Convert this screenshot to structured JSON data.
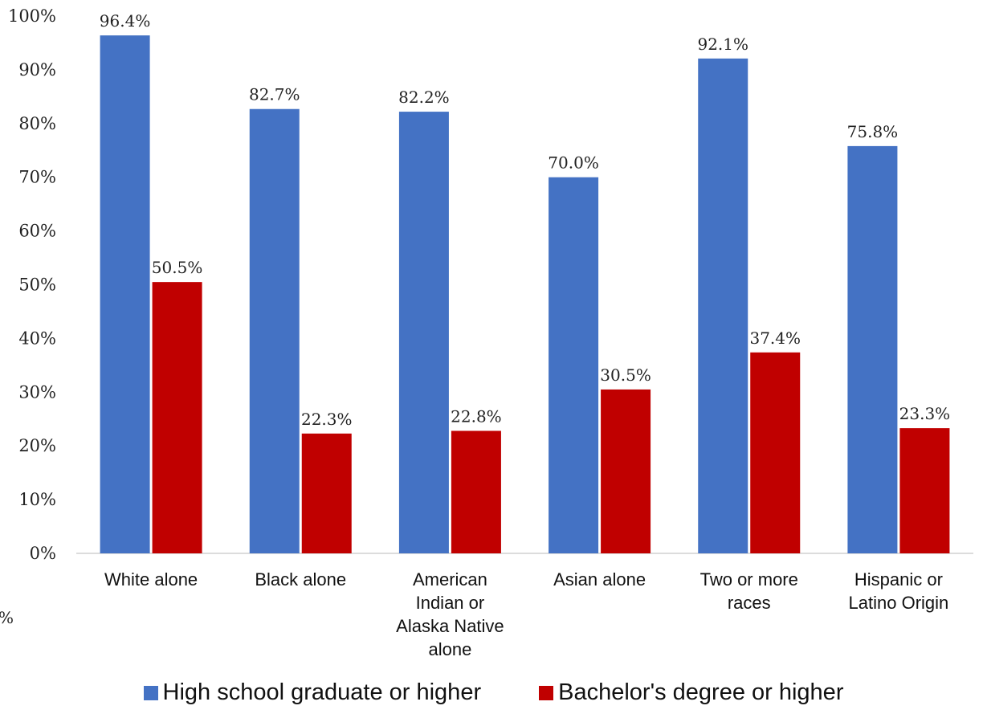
{
  "chart_data": {
    "type": "bar",
    "categories": [
      [
        "White alone"
      ],
      [
        "Black alone"
      ],
      [
        "American",
        "Indian or",
        "Alaska Native",
        "alone"
      ],
      [
        "Asian alone"
      ],
      [
        "Two or more",
        "races"
      ],
      [
        "Hispanic or",
        "Latino Origin"
      ]
    ],
    "series": [
      {
        "name": "High school graduate or higher",
        "color": "#4472C4",
        "values": [
          96.4,
          82.7,
          82.2,
          70.0,
          92.1,
          75.8
        ],
        "labels": [
          "96.4%",
          "82.7%",
          "82.2%",
          "70.0%",
          "92.1%",
          "75.8%"
        ]
      },
      {
        "name": "Bachelor's degree or higher",
        "color": "#C00000",
        "values": [
          50.5,
          22.3,
          22.8,
          30.5,
          37.4,
          23.3
        ],
        "labels": [
          "50.5%",
          "22.3%",
          "22.8%",
          "30.5%",
          "37.4%",
          "23.3%"
        ]
      }
    ],
    "ylim": [
      0,
      100
    ],
    "yticks": [
      "0%",
      "10%",
      "20%",
      "30%",
      "40%",
      "50%",
      "60%",
      "70%",
      "80%",
      "90%",
      "100%"
    ],
    "legend": "bottom",
    "grid": false
  },
  "stray_fragment": "%"
}
